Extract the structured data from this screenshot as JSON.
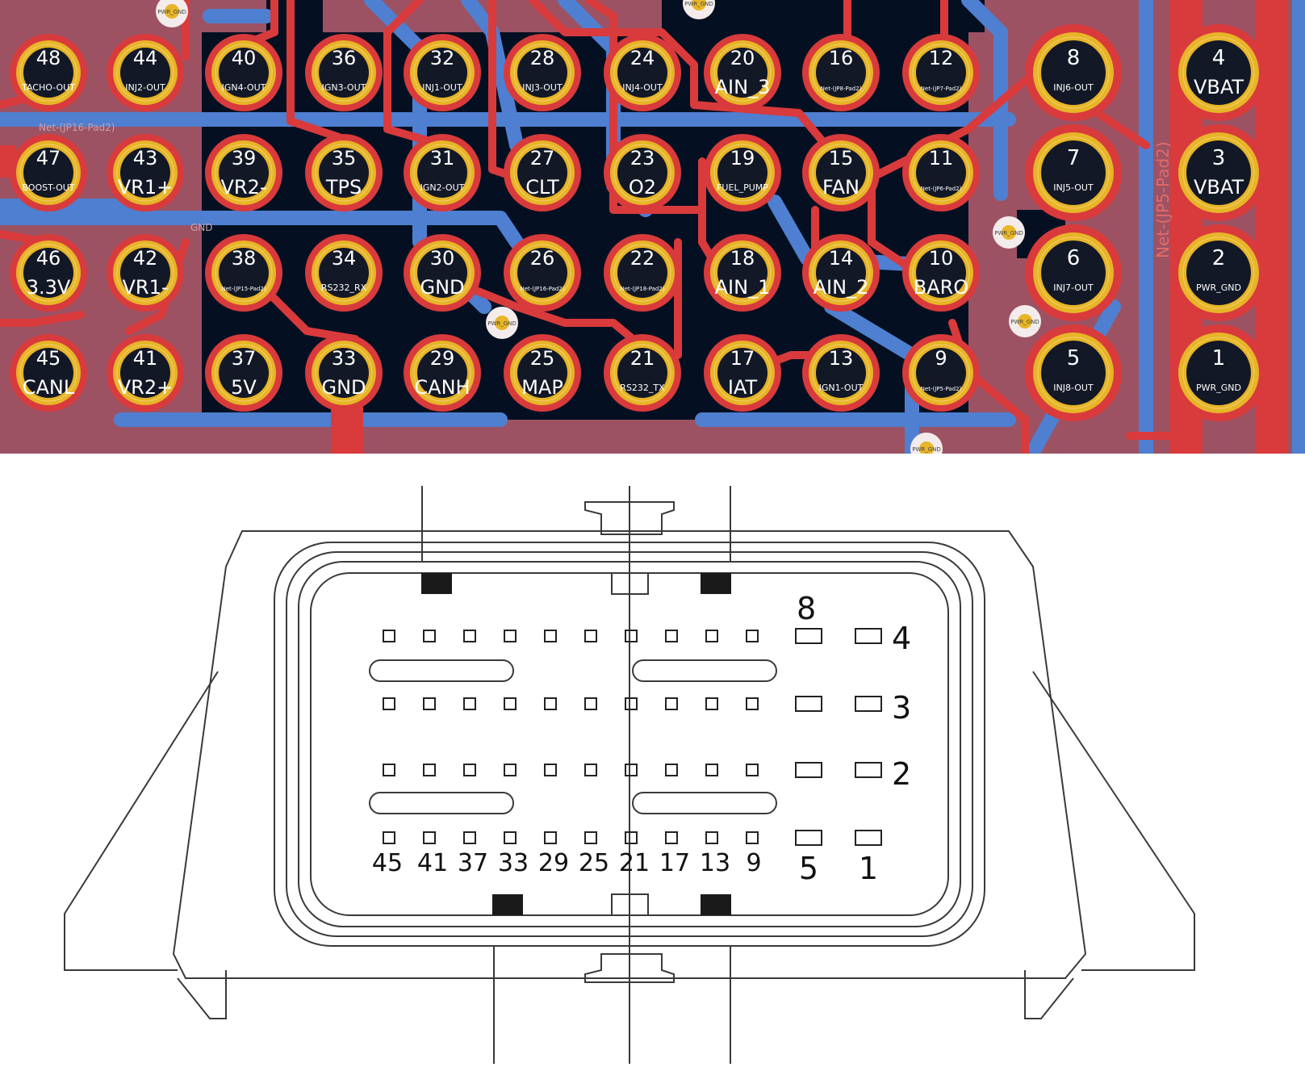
{
  "pcb": {
    "colors": {
      "board": "#9c5263",
      "board_dark": "#041022",
      "copper_top": "#d93a3c",
      "copper_bottom": "#4f7fd0",
      "pad_ring": "#e7b527",
      "pad_hole": "#121826",
      "pad_text": "#ffffff"
    },
    "pin_columns": [
      {
        "pins": [
          {
            "num": "48",
            "label": "TACHO-OUT",
            "size": "s"
          },
          {
            "num": "47",
            "label": "BOOST-OUT",
            "size": "s"
          },
          {
            "num": "46",
            "label": "3.3V",
            "size": "l"
          },
          {
            "num": "45",
            "label": "CANL",
            "size": "l"
          }
        ]
      },
      {
        "pins": [
          {
            "num": "44",
            "label": "INJ2-OUT",
            "size": "s"
          },
          {
            "num": "43",
            "label": "VR1+",
            "size": "l"
          },
          {
            "num": "42",
            "label": "VR1-",
            "size": "l"
          },
          {
            "num": "41",
            "label": "VR2+",
            "size": "l"
          }
        ]
      },
      {
        "pins": [
          {
            "num": "40",
            "label": "IGN4-OUT",
            "size": "s"
          },
          {
            "num": "39",
            "label": "VR2-",
            "size": "l"
          },
          {
            "num": "38",
            "label": "Net-(JP15-Pad2)",
            "size": "xs"
          },
          {
            "num": "37",
            "label": "5V",
            "size": "l"
          }
        ]
      },
      {
        "pins": [
          {
            "num": "36",
            "label": "IGN3-OUT",
            "size": "s"
          },
          {
            "num": "35",
            "label": "TPS",
            "size": "l"
          },
          {
            "num": "34",
            "label": "RS232_RX",
            "size": "s"
          },
          {
            "num": "33",
            "label": "GND",
            "size": "l"
          }
        ]
      },
      {
        "pins": [
          {
            "num": "32",
            "label": "INJ1-OUT",
            "size": "s"
          },
          {
            "num": "31",
            "label": "IGN2-OUT",
            "size": "s"
          },
          {
            "num": "30",
            "label": "GND",
            "size": "l"
          },
          {
            "num": "29",
            "label": "CANH",
            "size": "l"
          }
        ]
      },
      {
        "pins": [
          {
            "num": "28",
            "label": "INJ3-OUT",
            "size": "s"
          },
          {
            "num": "27",
            "label": "CLT",
            "size": "l"
          },
          {
            "num": "26",
            "label": "Net-(JP16-Pad2)",
            "size": "xs"
          },
          {
            "num": "25",
            "label": "MAP",
            "size": "l"
          }
        ]
      },
      {
        "pins": [
          {
            "num": "24",
            "label": "INJ4-OUT",
            "size": "s"
          },
          {
            "num": "23",
            "label": "O2",
            "size": "l"
          },
          {
            "num": "22",
            "label": "Net-(JP18-Pad2)",
            "size": "xs"
          },
          {
            "num": "21",
            "label": "RS232_TX",
            "size": "s"
          }
        ]
      },
      {
        "pins": [
          {
            "num": "20",
            "label": "AIN_3",
            "size": "l"
          },
          {
            "num": "19",
            "label": "FUEL_PUMP",
            "size": "s"
          },
          {
            "num": "18",
            "label": "AIN_1",
            "size": "l"
          },
          {
            "num": "17",
            "label": "IAT",
            "size": "l"
          }
        ]
      },
      {
        "pins": [
          {
            "num": "16",
            "label": "Net-(JP8-Pad2)",
            "size": "xs"
          },
          {
            "num": "15",
            "label": "FAN",
            "size": "l"
          },
          {
            "num": "14",
            "label": "AIN_2",
            "size": "l"
          },
          {
            "num": "13",
            "label": "IGN1-OUT",
            "size": "s"
          }
        ]
      },
      {
        "pins": [
          {
            "num": "12",
            "label": "Net-(JP7-Pad2)",
            "size": "xs"
          },
          {
            "num": "11",
            "label": "Net-(JP6-Pad2)",
            "size": "xs"
          },
          {
            "num": "10",
            "label": "BARO",
            "size": "l"
          },
          {
            "num": "9",
            "label": "Net-(JP5-Pad2)",
            "size": "xs"
          }
        ]
      },
      {
        "pins": [
          {
            "num": "8",
            "label": "INJ6-OUT",
            "size": "s"
          },
          {
            "num": "7",
            "label": "INJ5-OUT",
            "size": "s"
          },
          {
            "num": "6",
            "label": "INJ7-OUT",
            "size": "s"
          },
          {
            "num": "5",
            "label": "INJ8-OUT",
            "size": "s"
          }
        ]
      },
      {
        "pins": [
          {
            "num": "4",
            "label": "VBAT",
            "size": "l"
          },
          {
            "num": "3",
            "label": "VBAT",
            "size": "l"
          },
          {
            "num": "2",
            "label": "PWR_GND",
            "size": "s"
          },
          {
            "num": "1",
            "label": "PWR_GND",
            "size": "s"
          }
        ]
      }
    ],
    "net_labels": {
      "jp16": "Net-(JP16-Pad2)",
      "gnd": "GND",
      "jp5": "Net-(JP5-Pad2)"
    },
    "via_label": "PWR_GND"
  },
  "connector": {
    "row_labels": [
      "4",
      "3",
      "2"
    ],
    "top_right_label": "8",
    "bottom_labels": [
      "45",
      "41",
      "37",
      "33",
      "29",
      "25",
      "21",
      "17",
      "13",
      "9",
      "5",
      "1"
    ]
  }
}
